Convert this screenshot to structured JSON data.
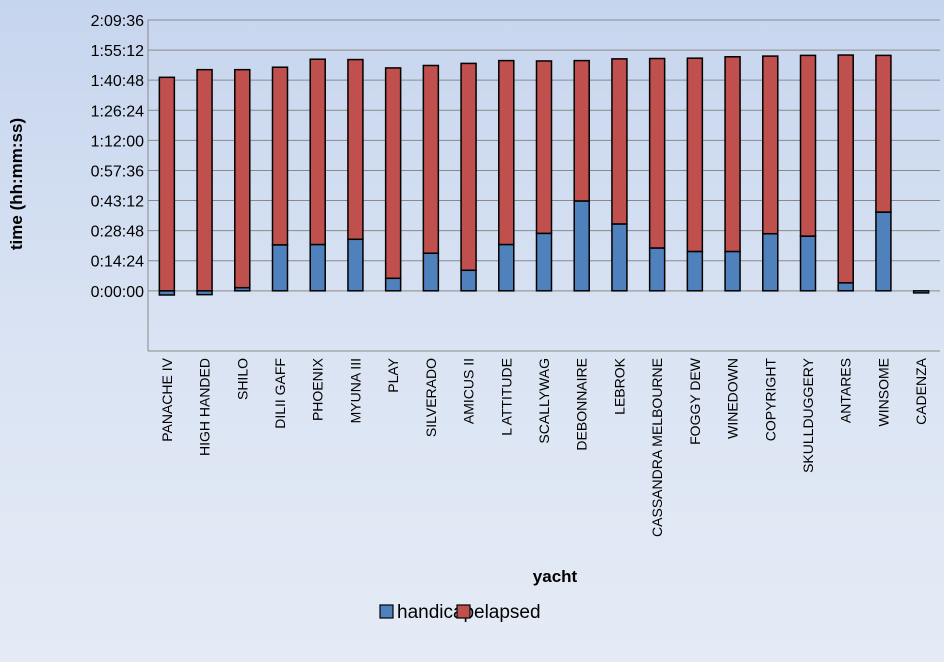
{
  "chart_data": {
    "type": "bar",
    "stacked": true,
    "title": "",
    "xlabel": "yacht",
    "ylabel": "time (hh:mm:ss)",
    "y_unit_note": "values in seconds; tick labels formatted h:mm:ss",
    "ylim": [
      -1728,
      7776
    ],
    "yticks_seconds": [
      0,
      864,
      1728,
      2592,
      3456,
      4320,
      5184,
      6048,
      6912,
      7776
    ],
    "ytick_labels": [
      "0:00:00",
      "0:14:24",
      "0:28:48",
      "0:43:12",
      "0:57:36",
      "1:12:00",
      "1:26:24",
      "1:40:48",
      "1:55:12",
      "2:09:36"
    ],
    "grid": true,
    "legend_position": "bottom",
    "categories": [
      "PANACHE IV",
      "HIGH HANDED",
      "SHILO",
      "DILII GAFF",
      "PHOENIX",
      "MYUNA III",
      "PLAY",
      "SILVERADO",
      "AMICUS II",
      "L ATTITUDE",
      "SCALLYWAG",
      "DEBONNAIRE",
      "LEBROK",
      "CASSANDRA MELBOURNE",
      "FOGGY DEW",
      "WINEDOWN",
      "COPYRIGHT",
      "SKULLDUGGERY",
      "ANTARES",
      "WINSOME",
      "CADENZA"
    ],
    "series": [
      {
        "name": "handicap",
        "color": "#4f81bd",
        "values": [
          -120,
          -110,
          90,
          1320,
          1330,
          1480,
          360,
          1080,
          590,
          1330,
          1650,
          2580,
          1920,
          1230,
          1130,
          1130,
          1640,
          1570,
          230,
          2260,
          -60
        ]
      },
      {
        "name": "elapsed",
        "color": "#c0504d",
        "values": [
          6130,
          6350,
          6260,
          5100,
          5320,
          5160,
          6040,
          5390,
          5940,
          5280,
          4950,
          4030,
          4740,
          5440,
          5550,
          5590,
          5100,
          5190,
          6540,
          4500,
          0
        ]
      }
    ]
  }
}
